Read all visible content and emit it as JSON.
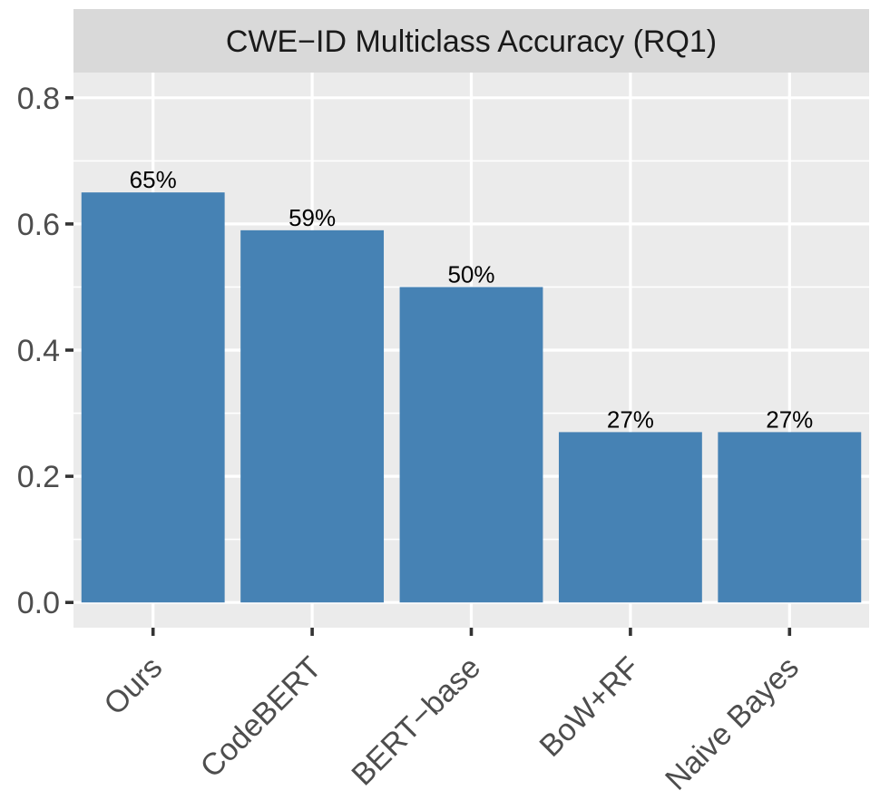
{
  "chart_data": {
    "type": "bar",
    "title": "CWE−ID Multiclass Accuracy (RQ1)",
    "categories": [
      "Ours",
      "CodeBERT",
      "BERT−base",
      "BoW+RF",
      "Naive Bayes"
    ],
    "values": [
      0.65,
      0.59,
      0.5,
      0.27,
      0.27
    ],
    "data_labels": [
      "65%",
      "59%",
      "50%",
      "27%",
      "27%"
    ],
    "xlabel": "",
    "ylabel": "",
    "ylim": [
      -0.04,
      0.84
    ],
    "yticks": [
      0.0,
      0.2,
      0.4,
      0.6,
      0.8
    ],
    "ytick_labels": [
      "0.0",
      "0.2",
      "0.4",
      "0.6",
      "0.8"
    ],
    "grid": true,
    "legend": "none",
    "colors": {
      "bar": "#4682B4",
      "panel": "#EBEBEB",
      "strip": "#D9D9D9",
      "grid": "#FFFFFF",
      "tick_text": "#4D4D4D",
      "tick_mark": "#333333",
      "title_text": "#1A1A1A",
      "data_label_text": "#000000"
    }
  }
}
